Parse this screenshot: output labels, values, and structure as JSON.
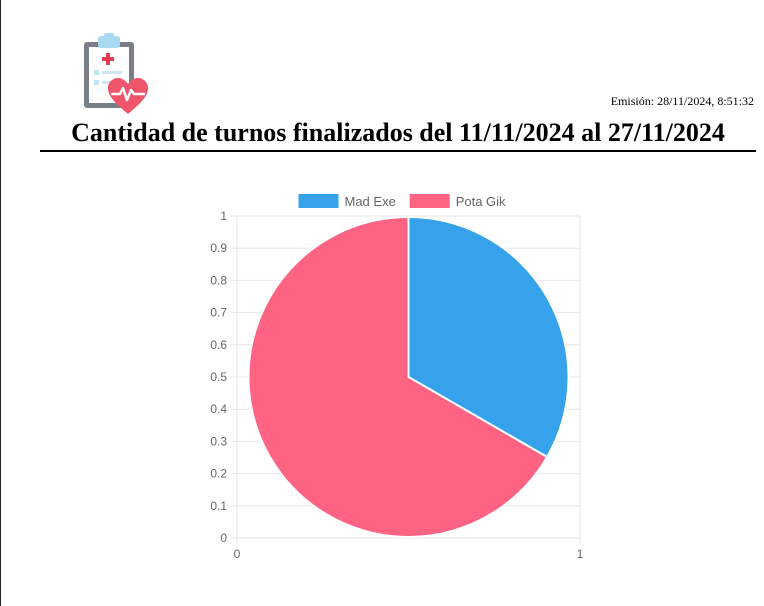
{
  "report": {
    "emission": "Emisión: 28/11/2024, 8:51:32",
    "title": "Cantidad de turnos finalizados del 11/11/2024 al 27/11/2024"
  },
  "colors": {
    "series_a": "#36a2eb",
    "series_b": "#ff6384",
    "grid": "#e6e6e6",
    "tick_text": "#666666"
  },
  "chart_data": {
    "type": "pie",
    "categories": [
      "Mad Exe",
      "Pota Gik"
    ],
    "values": [
      1,
      2
    ],
    "legend_position": "top",
    "y_axis": {
      "range": [
        0,
        1
      ],
      "ticks": [
        "0",
        "0.1",
        "0.2",
        "0.3",
        "0.4",
        "0.5",
        "0.6",
        "0.7",
        "0.8",
        "0.9",
        "1"
      ]
    },
    "x_axis": {
      "range": [
        0,
        1
      ],
      "ticks": [
        "0",
        "1"
      ]
    },
    "grid": true
  }
}
